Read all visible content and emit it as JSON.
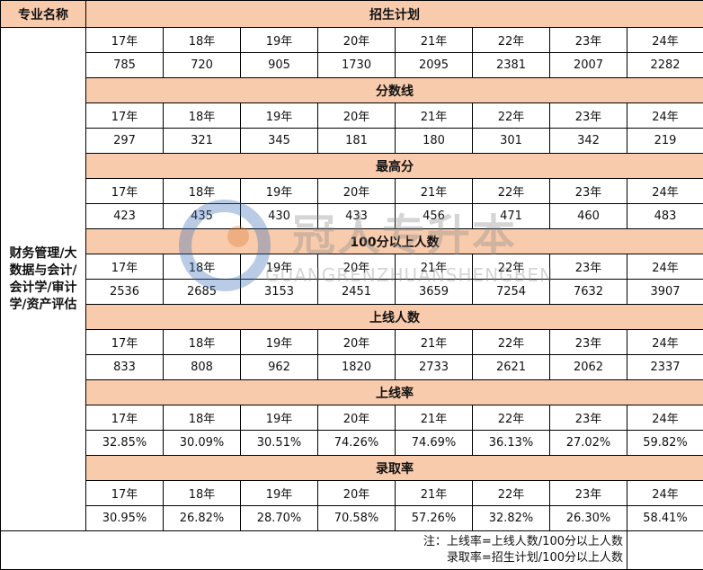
{
  "header": {
    "label": "专业名称"
  },
  "major": "财务管理/大数据与会计/会计学/审计学/资产评估",
  "sections": [
    {
      "title": "招生计划",
      "years": [
        "17年",
        "18年",
        "19年",
        "20年",
        "21年",
        "22年",
        "23年",
        "24年"
      ],
      "values": [
        785,
        720,
        905,
        1730,
        2095,
        2381,
        2007,
        2282
      ]
    },
    {
      "title": "分数线",
      "years": [
        "17年",
        "18年",
        "19年",
        "20年",
        "21年",
        "22年",
        "23年",
        "24年"
      ],
      "values": [
        297,
        321,
        345,
        181,
        180,
        301,
        342,
        219
      ]
    },
    {
      "title": "最高分",
      "years": [
        "17年",
        "18年",
        "19年",
        "20年",
        "21年",
        "22年",
        "23年",
        "24年"
      ],
      "values": [
        423,
        435,
        430,
        433,
        456,
        471,
        460,
        483
      ]
    },
    {
      "title": "100分以上人数",
      "years": [
        "17年",
        "18年",
        "19年",
        "20年",
        "21年",
        "22年",
        "23年",
        "24年"
      ],
      "values": [
        2536,
        2685,
        3153,
        2451,
        3659,
        7254,
        7632,
        3907
      ]
    },
    {
      "title": "上线人数",
      "years": [
        "17年",
        "18年",
        "19年",
        "20年",
        "21年",
        "22年",
        "23年",
        "24年"
      ],
      "values": [
        833,
        808,
        962,
        1820,
        2733,
        2621,
        2062,
        2337
      ]
    },
    {
      "title": "上线率",
      "years": [
        "17年",
        "18年",
        "19年",
        "20年",
        "21年",
        "22年",
        "23年",
        "24年"
      ],
      "values": [
        "32.85%",
        "30.09%",
        "30.51%",
        "74.26%",
        "74.69%",
        "36.13%",
        "27.02%",
        "59.82%"
      ]
    },
    {
      "title": "录取率",
      "years": [
        "17年",
        "18年",
        "19年",
        "20年",
        "21年",
        "22年",
        "23年",
        "24年"
      ],
      "values": [
        "30.95%",
        "26.82%",
        "28.70%",
        "70.58%",
        "57.26%",
        "32.82%",
        "26.30%",
        "58.41%"
      ]
    }
  ],
  "notes": [
    "注：上线率=上线人数/100分以上人数",
    "录取率=招生计划/100分以上人数"
  ],
  "watermark": {
    "title": "冠人专升本",
    "subtitle": "GUANGRENZHUANSHENGBEN"
  }
}
